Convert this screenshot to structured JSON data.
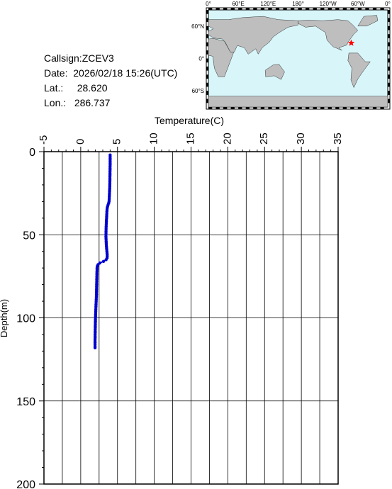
{
  "info": {
    "callsign_label": "Callsign:",
    "callsign": "ZCEV3",
    "date_label": "Date:",
    "date": "2026/02/18 15:26(UTC)",
    "lat_label": "Lat.:",
    "lat": "28.620",
    "lon_label": "Lon.:",
    "lon": "286.737"
  },
  "map": {
    "top_labels": [
      "0°",
      "60°E",
      "120°E",
      "180°",
      "120°W",
      "60°W",
      "0°"
    ],
    "side_labels": [
      "60°N",
      "0°",
      "60°S"
    ],
    "ocean_color": "#d8f6fa",
    "land_color": "#bebebe",
    "marker_color": "#ff0000",
    "marker_icon": "star-icon"
  },
  "chart_data": {
    "type": "line",
    "xlabel": "Temperature(C)",
    "ylabel": "Depth(m)",
    "xlim": [
      -5,
      35
    ],
    "ylim": [
      200,
      0
    ],
    "x_ticks": [
      -5,
      0,
      5,
      10,
      15,
      20,
      25,
      30,
      35
    ],
    "y_ticks": [
      0,
      50,
      100,
      150,
      200
    ],
    "grid": true,
    "series_color": "#0000cc",
    "series": [
      {
        "depth": [
          2,
          3,
          4,
          5,
          6,
          7,
          8,
          9,
          10,
          11,
          12,
          13,
          14,
          15,
          16,
          17,
          18,
          19,
          20,
          21,
          22,
          23,
          24,
          25,
          26,
          27,
          28,
          29,
          30,
          31,
          32,
          33,
          34,
          35,
          36,
          37,
          38,
          39,
          40,
          41,
          42,
          43,
          44,
          45,
          46,
          47,
          48,
          49,
          50,
          51,
          52,
          53,
          54,
          55,
          56,
          57,
          58,
          59,
          60,
          61,
          62,
          63,
          64,
          65,
          66,
          67,
          68,
          69,
          70,
          71,
          72,
          73,
          74,
          75,
          76,
          77,
          78,
          79,
          80,
          81,
          82,
          83,
          84,
          85,
          86,
          87,
          88,
          89,
          90,
          91,
          92,
          93,
          94,
          95,
          96,
          97,
          98,
          99,
          100,
          101,
          102,
          103,
          104,
          105,
          106,
          107,
          108,
          109,
          110,
          111,
          112,
          113,
          114,
          115,
          116,
          117,
          118
        ],
        "temperature": [
          4.0,
          4.0,
          4.0,
          4.0,
          4.0,
          4.0,
          4.0,
          3.99,
          3.99,
          3.99,
          3.98,
          3.98,
          3.98,
          3.97,
          3.97,
          3.97,
          3.96,
          3.96,
          3.95,
          3.95,
          3.94,
          3.93,
          3.92,
          3.91,
          3.9,
          3.89,
          3.88,
          3.87,
          3.85,
          3.8,
          3.72,
          3.65,
          3.6,
          3.58,
          3.56,
          3.55,
          3.54,
          3.53,
          3.52,
          3.5,
          3.49,
          3.48,
          3.47,
          3.46,
          3.45,
          3.45,
          3.44,
          3.44,
          3.43,
          3.43,
          3.44,
          3.45,
          3.46,
          3.47,
          3.48,
          3.5,
          3.52,
          3.54,
          3.56,
          3.58,
          3.6,
          3.6,
          3.58,
          3.45,
          3.1,
          2.6,
          2.35,
          2.25,
          2.22,
          2.22,
          2.21,
          2.2,
          2.2,
          2.19,
          2.19,
          2.18,
          2.18,
          2.17,
          2.17,
          2.16,
          2.16,
          2.15,
          2.15,
          2.14,
          2.14,
          2.13,
          2.12,
          2.11,
          2.1,
          2.09,
          2.08,
          2.07,
          2.06,
          2.05,
          2.04,
          2.03,
          2.02,
          2.02,
          2.01,
          2.0,
          2.0,
          1.99,
          1.99,
          1.98,
          1.98,
          1.97,
          1.97,
          1.97,
          1.96,
          1.96,
          1.96,
          1.95,
          1.95,
          1.95,
          1.95,
          1.95,
          1.95
        ]
      }
    ]
  }
}
